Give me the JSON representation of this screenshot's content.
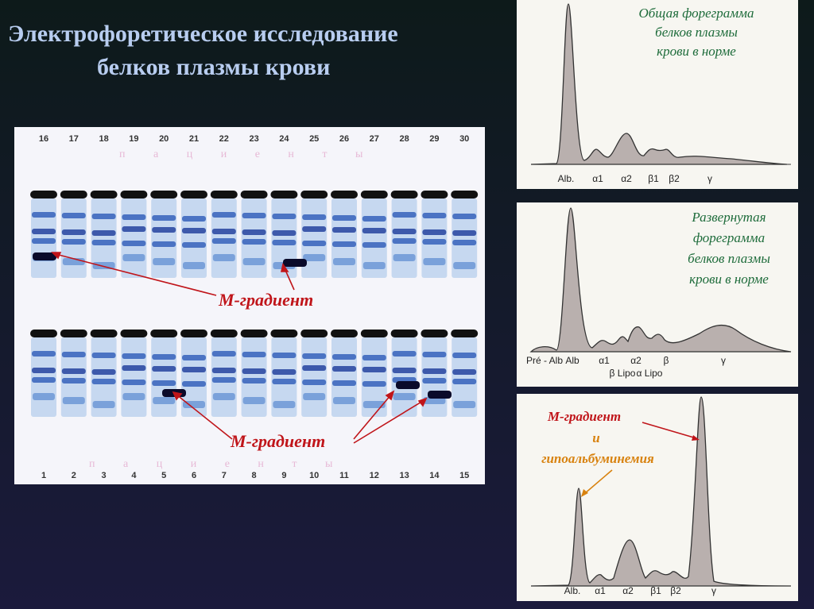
{
  "title": [
    "Электрофоретическое исследование",
    "белков  плазмы крови"
  ],
  "gel": {
    "top_lanes": [
      "16",
      "17",
      "18",
      "19",
      "20",
      "21",
      "22",
      "23",
      "24",
      "25",
      "26",
      "27",
      "28",
      "29",
      "30"
    ],
    "bottom_lanes": [
      "1",
      "2",
      "3",
      "4",
      "5",
      "6",
      "7",
      "8",
      "9",
      "10",
      "11",
      "12",
      "13",
      "14",
      "15"
    ],
    "patients_top": "п а ц и е н т ы",
    "patients_bottom": "п а ц и е н т ы",
    "m_gradient_top": "М-градиент",
    "m_gradient_bottom": "М-градиент"
  },
  "panels": [
    {
      "caption": [
        "Общая фореграмма",
        "белков плазмы",
        "крови в норме"
      ],
      "labels": [
        "Alb.",
        "α1",
        "α2",
        "β1",
        "β2",
        "γ"
      ]
    },
    {
      "caption": [
        "Развернутая",
        "форeграмма",
        "белков плазмы",
        "крови в норме"
      ],
      "labels": [
        "Pré - Alb",
        "Alb",
        "α1",
        "α2",
        "β",
        "γ",
        "β Lipo",
        "α Lipo"
      ]
    },
    {
      "caption": [
        "М-градиент",
        "и",
        "гипоальбуминемия"
      ],
      "labels": [
        "Alb.",
        "α1",
        "α2",
        "β1",
        "β2",
        "γ"
      ]
    }
  ]
}
